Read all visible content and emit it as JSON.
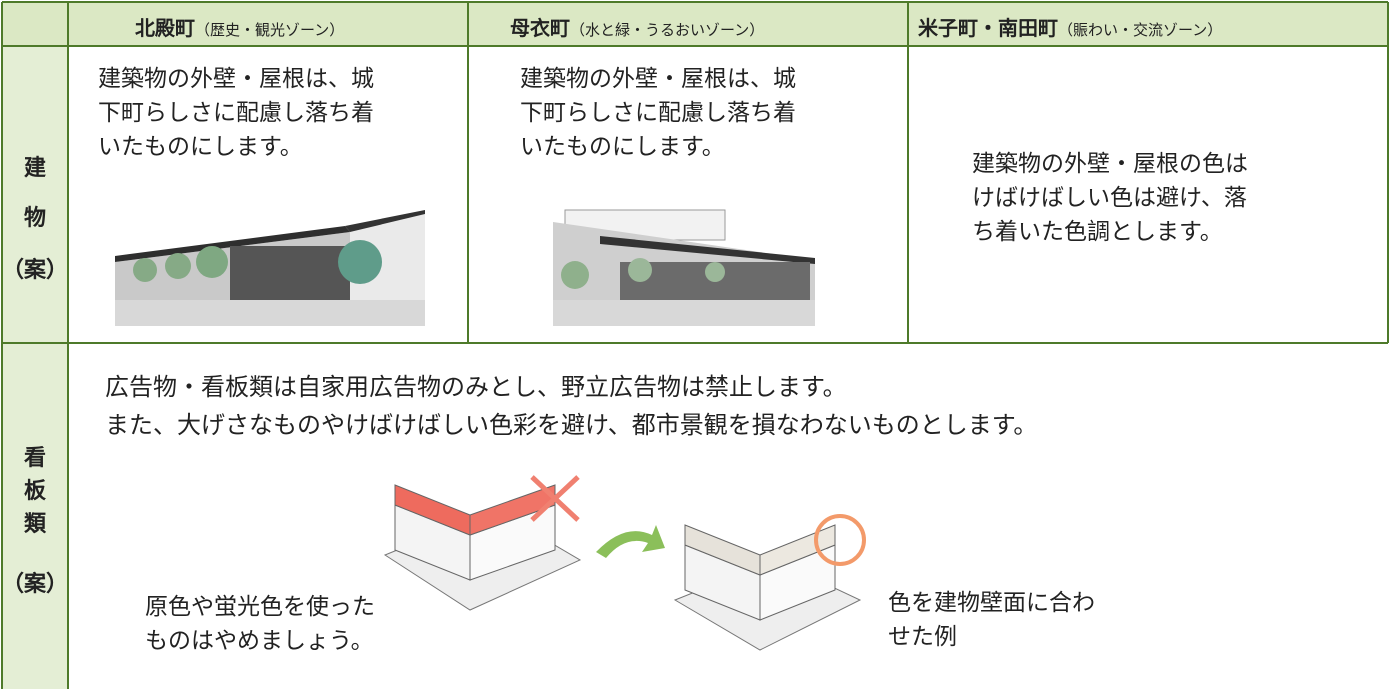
{
  "table": {
    "header": [
      {
        "name": "北殿町",
        "note": "（歴史・観光ゾーン）"
      },
      {
        "name": "母衣町",
        "note": "（水と緑・うるおいゾーン）"
      },
      {
        "name": "米子町・南田町",
        "note": "（賑わい・交流ゾーン）"
      }
    ],
    "rows": [
      {
        "label": [
          "建",
          "物",
          "（案）"
        ],
        "cells": [
          {
            "text": [
              "建築物の外壁・屋根は、城",
              "下町らしさに配慮し落ち着",
              "いたものにします。"
            ]
          },
          {
            "text": [
              "建築物の外壁・屋根は、城",
              "下町らしさに配慮し落ち着",
              "いたものにします。"
            ]
          },
          {
            "text": [
              "建築物の外壁・屋根の色は",
              "けばけばしい色は避け、落",
              "ち着いた色調とします。"
            ]
          }
        ]
      },
      {
        "label": [
          "看",
          "板",
          "類",
          "（案）"
        ],
        "text": [
          "広告物・看板類は自家用広告物のみとし、野立広告物は禁止します。",
          "また、大げさなものやけばけばしい色彩を避け、都市景観を損なわないものとします。"
        ],
        "captions": [
          [
            "原色や蛍光色を使った",
            "ものはやめましょう。"
          ],
          [
            "色を建物壁面に合わ",
            "せた例"
          ]
        ]
      }
    ]
  }
}
